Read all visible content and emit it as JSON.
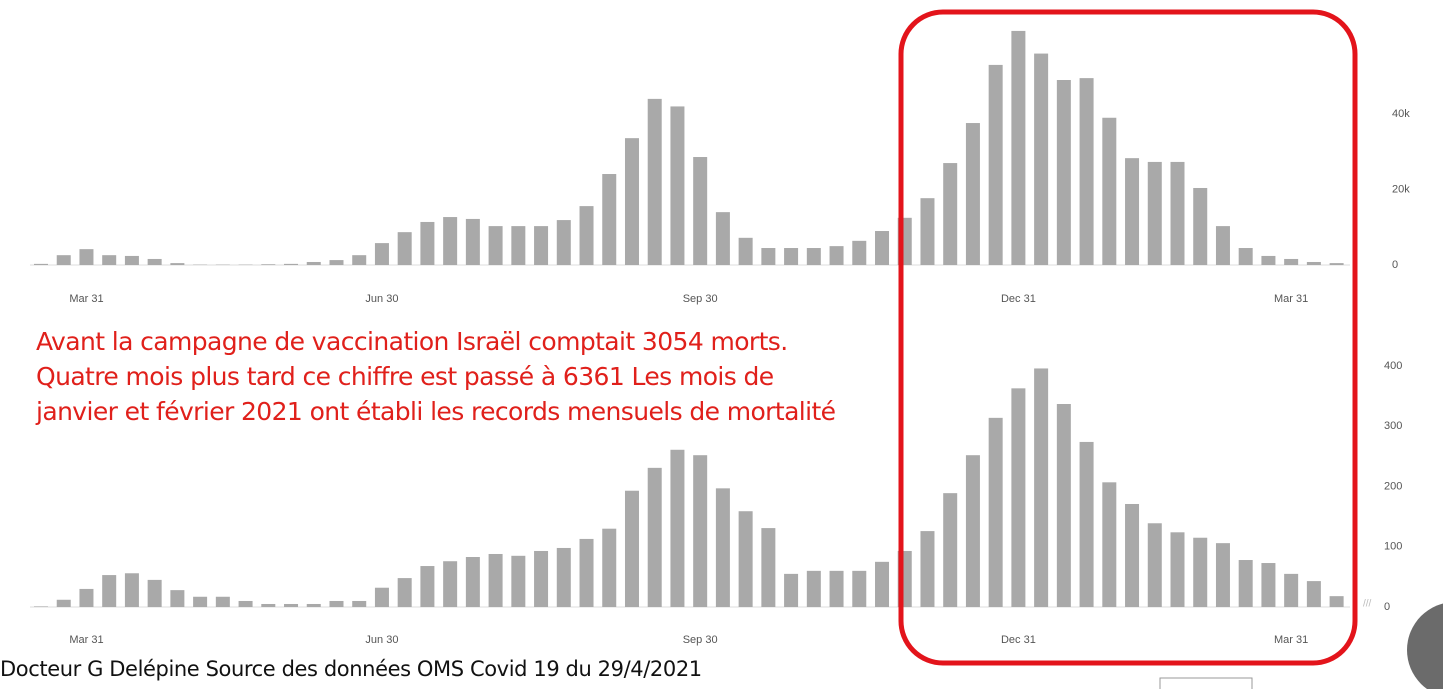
{
  "chart_data": [
    {
      "type": "bar",
      "color": "#a9a9a9",
      "grid": false,
      "categories": [
        null,
        null,
        "Mar 31",
        null,
        null,
        null,
        null,
        null,
        null,
        null,
        null,
        null,
        null,
        null,
        null,
        "Jun 30",
        null,
        null,
        null,
        null,
        null,
        null,
        null,
        null,
        null,
        null,
        null,
        null,
        null,
        "Sep 30",
        null,
        null,
        null,
        null,
        null,
        null,
        null,
        null,
        null,
        null,
        null,
        null,
        null,
        "Dec 31",
        null,
        null,
        null,
        null,
        null,
        null,
        null,
        null,
        null,
        null,
        null,
        "Mar 31",
        null,
        null
      ],
      "values": [
        300,
        2600,
        4200,
        2600,
        2400,
        1600,
        500,
        100,
        100,
        100,
        200,
        300,
        800,
        1300,
        2600,
        5800,
        8700,
        11400,
        12700,
        12200,
        10300,
        10300,
        10300,
        11900,
        15600,
        24100,
        33600,
        44000,
        42000,
        28600,
        14000,
        7200,
        4500,
        4500,
        4500,
        5000,
        6400,
        9000,
        12500,
        17700,
        27000,
        37600,
        53000,
        62000,
        56000,
        49000,
        49500,
        39000,
        28300,
        27300,
        27300,
        20400,
        10300,
        4500,
        2400,
        1600,
        800,
        500
      ],
      "ylim": [
        0,
        65000
      ],
      "yticks": [
        0,
        {
          "value": 20000,
          "label": "20k"
        },
        {
          "value": 40000,
          "label": "40k"
        }
      ]
    },
    {
      "type": "bar",
      "color": "#a9a9a9",
      "grid": false,
      "categories": [
        null,
        null,
        "Mar 31",
        null,
        null,
        null,
        null,
        null,
        null,
        null,
        null,
        null,
        null,
        null,
        null,
        "Jun 30",
        null,
        null,
        null,
        null,
        null,
        null,
        null,
        null,
        null,
        null,
        null,
        null,
        null,
        "Sep 30",
        null,
        null,
        null,
        null,
        null,
        null,
        null,
        null,
        null,
        null,
        null,
        null,
        null,
        "Dec 31",
        null,
        null,
        null,
        null,
        null,
        null,
        null,
        null,
        null,
        null,
        null,
        "Mar 31",
        null,
        null
      ],
      "values": [
        1,
        12,
        30,
        53,
        56,
        45,
        28,
        17,
        17,
        10,
        5,
        5,
        5,
        10,
        10,
        32,
        48,
        68,
        76,
        83,
        88,
        85,
        93,
        98,
        113,
        130,
        193,
        231,
        261,
        252,
        197,
        159,
        131,
        55,
        60,
        60,
        60,
        75,
        93,
        126,
        189,
        252,
        314,
        363,
        396,
        337,
        274,
        207,
        171,
        139,
        124,
        115,
        106,
        78,
        73,
        55,
        43,
        18
      ],
      "ylim": [
        0,
        420
      ],
      "yticks": [
        0,
        100,
        200,
        300,
        400
      ]
    }
  ],
  "annotation": [
    "Avant la campagne de vaccination Israël comptait 3054 morts.",
    "Quatre mois plus tard ce chiffre est passé à 6361 Les mois de",
    "janvier et février 2021 ont établi les records mensuels de mortalité"
  ],
  "footer": "Docteur G Delépine  Source des données OMS Covid 19 du 29/4/2021"
}
